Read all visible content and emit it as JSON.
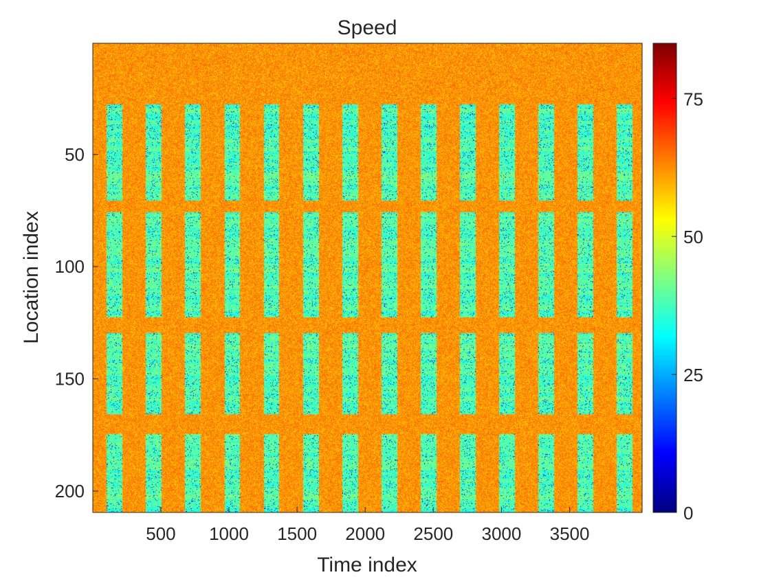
{
  "chart_data": {
    "type": "heatmap",
    "title": "Speed",
    "xlabel": "Time index",
    "ylabel": "Location index",
    "xlim": [
      1,
      4032
    ],
    "ylim": [
      1,
      209
    ],
    "y_direction": "reverse",
    "x_ticks": [
      500,
      1000,
      1500,
      2000,
      2500,
      3000,
      3500
    ],
    "x_tick_labels": [
      "500",
      "1000",
      "1500",
      "2000",
      "2500",
      "3000",
      "3500"
    ],
    "y_ticks": [
      50,
      100,
      150,
      200
    ],
    "y_tick_labels": [
      "50",
      "100",
      "150",
      "200"
    ],
    "colorbar": {
      "colormap": "jet",
      "clim": [
        0,
        85
      ],
      "ticks": [
        0,
        25,
        50,
        75
      ],
      "tick_labels": [
        "0",
        "25",
        "50",
        "75"
      ],
      "placement": "right"
    },
    "data_summary": {
      "num_locations": 209,
      "num_time_steps": 4032,
      "daily_period_time_steps": 288,
      "num_days": 14,
      "congested_bands_location_index": [
        [
          28,
          70
        ],
        [
          76,
          122
        ],
        [
          130,
          165
        ],
        [
          175,
          209
        ]
      ],
      "free_flow_bands_location_index": [
        [
          1,
          28
        ],
        [
          70,
          76
        ],
        [
          122,
          130
        ],
        [
          165,
          175
        ]
      ],
      "free_flow_speed_typical": 62,
      "congested_speed_range": [
        5,
        50
      ]
    },
    "grid": false,
    "legend": "none"
  }
}
